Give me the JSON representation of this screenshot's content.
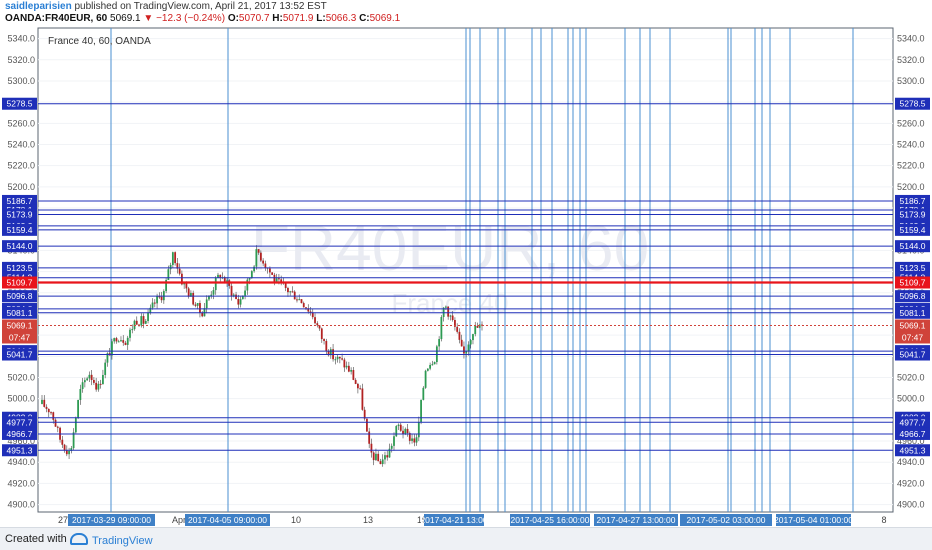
{
  "header": {
    "author": "saidleparisien",
    "published": " published on TradingView.com, April 21, 2017 13:52 EST",
    "symbol": "OANDA:FR40EUR, 60",
    "last": "5069.1",
    "change": "▼ −12.3 (−0.24%)",
    "open_label": "O:",
    "open": "5070.7",
    "high_label": "H:",
    "high": "5071.9",
    "low_label": "L:",
    "low": "5066.3",
    "close_label": "C:",
    "close": "5069.1"
  },
  "legend": {
    "text": "France 40, 60, OANDA"
  },
  "watermark": {
    "symbol": "FR40EUR, 60",
    "name": "France 40"
  },
  "footer": {
    "created": "Created with",
    "brand": "TradingView"
  },
  "colors": {
    "hline": "#1f2fb8",
    "vline": "#4a8fd0",
    "red_line": "#e8141b",
    "candle_up": "#2d9a52",
    "candle_down": "#b22222",
    "price_tag": "#d0433a",
    "date_tag": "#3f80c6"
  },
  "chart_data": {
    "type": "candlestick",
    "symbol": "FR40EUR",
    "interval": "60",
    "ylim": [
      4893,
      5350
    ],
    "y_ticks": [
      4900,
      4920,
      4940,
      4960,
      4980,
      5000,
      5020,
      5040,
      5060,
      5080,
      5100,
      5120,
      5140,
      5160,
      5180,
      5200,
      5220,
      5240,
      5260,
      5280,
      5300,
      5320,
      5340
    ],
    "x_ticks": [
      "27",
      "Apr",
      "10",
      "13",
      "19",
      "8"
    ],
    "last_price": 5069.1,
    "countdown": "07:47",
    "red_line_level": 5109.7,
    "horizontal_levels": [
      5278.5,
      5186.7,
      5178.1,
      5173.9,
      5163.2,
      5159.4,
      5144.0,
      5123.5,
      5114.2,
      5109.7,
      5096.8,
      5084.8,
      5081.1,
      5044.9,
      5041.7,
      4982.0,
      4977.7,
      4966.7,
      4951.3
    ],
    "vertical_date_labels": [
      "2017-03-29 09:00:00",
      "2017-04-05 09:00:00",
      "2017-04-21 13:00",
      "2017-04-25 16:00:00",
      "2017-04-27 13:00:00",
      "2017-05-02 03:00:00",
      "2017-05-04 01:00:00"
    ],
    "price_path": [
      4995,
      4988,
      4960,
      4948,
      5005,
      5025,
      5010,
      5040,
      5060,
      5055,
      5075,
      5072,
      5090,
      5100,
      5138,
      5110,
      5095,
      5080,
      5100,
      5118,
      5105,
      5090,
      5110,
      5140,
      5125,
      5110,
      5104,
      5098,
      5090,
      5078,
      5055,
      5040,
      5035,
      5025,
      5005,
      4950,
      4940,
      4948,
      4975,
      4965,
      4960,
      5030,
      5040,
      5090,
      5070,
      5040,
      5065,
      5069.1
    ]
  }
}
